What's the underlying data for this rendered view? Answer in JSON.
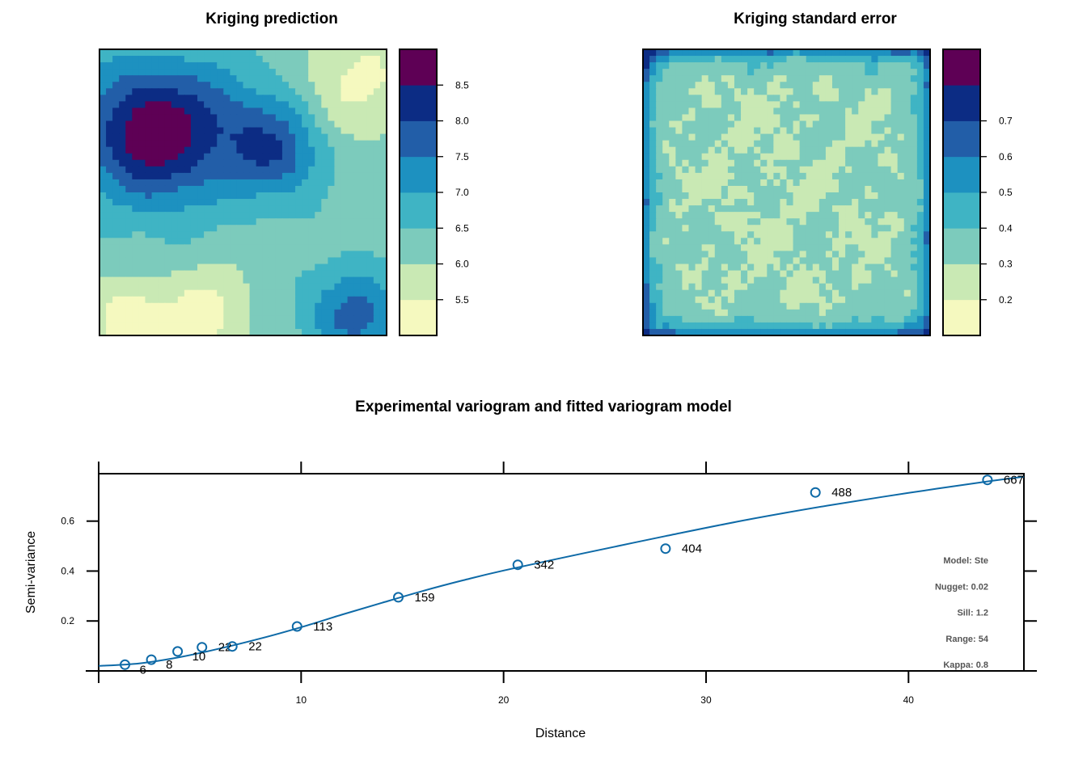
{
  "chart_data": [
    {
      "type": "heatmap",
      "title": "Kriging prediction",
      "grid_size": [
        44,
        44
      ],
      "colorbar": {
        "breaks": [
          5.3,
          5.5,
          6.0,
          6.5,
          7.0,
          7.5,
          8.0,
          8.5,
          9.0
        ],
        "tick_values": [
          5.5,
          6.0,
          6.5,
          7.0,
          7.5,
          8.0,
          8.5
        ],
        "tick_labels": [
          "5.5",
          "6.0",
          "6.5",
          "7.0",
          "7.5",
          "8.0",
          "8.5"
        ]
      },
      "palette": [
        "#f5f9bf",
        "#c9e9b4",
        "#7ccbbc",
        "#3fb4c4",
        "#1d91c0",
        "#225ea8",
        "#0c2c84",
        "#5e0055"
      ],
      "surface": {
        "base": 6.3,
        "features": [
          {
            "cx": 0.18,
            "cy": 0.3,
            "r": 0.24,
            "amp": 2.6
          },
          {
            "cx": 0.62,
            "cy": 0.36,
            "r": 0.17,
            "amp": 1.6
          },
          {
            "cx": 0.9,
            "cy": 0.93,
            "r": 0.16,
            "amp": 1.4
          },
          {
            "cx": 0.45,
            "cy": 0.2,
            "r": 0.2,
            "amp": 0.6
          },
          {
            "cx": 0.1,
            "cy": 0.95,
            "r": 0.15,
            "amp": -1.2
          },
          {
            "cx": 0.38,
            "cy": 0.93,
            "r": 0.16,
            "amp": -0.9
          },
          {
            "cx": 0.88,
            "cy": 0.12,
            "r": 0.22,
            "amp": -0.9
          }
        ]
      }
    },
    {
      "type": "heatmap",
      "title": "Kriging standard error",
      "grid_size": [
        44,
        44
      ],
      "colorbar": {
        "breaks": [
          0.13,
          0.2,
          0.3,
          0.4,
          0.5,
          0.6,
          0.7,
          0.8
        ],
        "tick_values": [
          0.2,
          0.3,
          0.4,
          0.5,
          0.6,
          0.7
        ],
        "tick_labels": [
          "0.2",
          "0.3",
          "0.4",
          "0.5",
          "0.6",
          "0.7"
        ]
      },
      "palette": [
        "#f5f9bf",
        "#c9e9b4",
        "#7ccbbc",
        "#3fb4c4",
        "#1d91c0",
        "#225ea8",
        "#0c2c84",
        "#5e0055"
      ]
    },
    {
      "type": "scatter",
      "title": "Experimental variogram and fitted variogram model",
      "xlabel": "Distance",
      "ylabel": "Semi-variance",
      "xlim": [
        0,
        45.7
      ],
      "ylim": [
        0,
        0.79
      ],
      "x_ticks": [
        10,
        20,
        30,
        40
      ],
      "x_tick_labels": [
        "10",
        "20",
        "30",
        "40"
      ],
      "y_ticks": [
        0.2,
        0.4,
        0.6
      ],
      "y_tick_labels": [
        "0.2",
        "0.4",
        "0.6"
      ],
      "points": [
        {
          "x": 1.3,
          "y": 0.025,
          "n": "6"
        },
        {
          "x": 2.6,
          "y": 0.045,
          "n": "8"
        },
        {
          "x": 3.9,
          "y": 0.078,
          "n": "10"
        },
        {
          "x": 5.1,
          "y": 0.095,
          "n": "22"
        },
        {
          "x": 6.6,
          "y": 0.098,
          "n": "22"
        },
        {
          "x": 9.8,
          "y": 0.178,
          "n": "113"
        },
        {
          "x": 14.8,
          "y": 0.295,
          "n": "159"
        },
        {
          "x": 20.7,
          "y": 0.425,
          "n": "342"
        },
        {
          "x": 28.0,
          "y": 0.49,
          "n": "404"
        },
        {
          "x": 35.4,
          "y": 0.715,
          "n": "488"
        },
        {
          "x": 43.9,
          "y": 0.765,
          "n": "667"
        }
      ],
      "model_curve": {
        "x": [
          0,
          2,
          4,
          6,
          8,
          10,
          12,
          14,
          16,
          18,
          20,
          24,
          28,
          32,
          36,
          40,
          44,
          45.7
        ],
        "y": [
          0.02,
          0.03,
          0.055,
          0.09,
          0.13,
          0.175,
          0.225,
          0.273,
          0.32,
          0.363,
          0.402,
          0.472,
          0.54,
          0.605,
          0.662,
          0.713,
          0.76,
          0.778
        ]
      },
      "model_info": [
        "Model: Ste",
        "Nugget: 0.02",
        "Sill: 1.2",
        "Range: 54",
        "Kappa: 0.8"
      ],
      "color": "#0e6aa7"
    }
  ]
}
